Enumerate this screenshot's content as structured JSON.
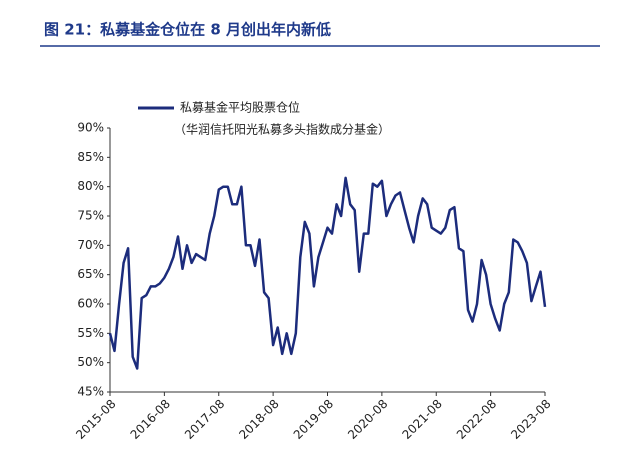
{
  "chart_data": {
    "type": "line",
    "title": "图 21：私募基金仓位在 8 月创出年内新低",
    "legend_note": "（华润信托阳光私募多头指数成分基金）",
    "categories": [
      "2015-08",
      null,
      null,
      null,
      null,
      null,
      null,
      null,
      null,
      null,
      null,
      null,
      "2016-08",
      null,
      null,
      null,
      null,
      null,
      null,
      null,
      null,
      null,
      null,
      null,
      "2017-08",
      null,
      null,
      null,
      null,
      null,
      null,
      null,
      null,
      null,
      null,
      null,
      "2018-08",
      null,
      null,
      null,
      null,
      null,
      null,
      null,
      null,
      null,
      null,
      null,
      "2019-08",
      null,
      null,
      null,
      null,
      null,
      null,
      null,
      null,
      null,
      null,
      null,
      "2020-08",
      null,
      null,
      null,
      null,
      null,
      null,
      null,
      null,
      null,
      null,
      null,
      "2021-08",
      null,
      null,
      null,
      null,
      null,
      null,
      null,
      null,
      null,
      null,
      null,
      "2022-08",
      null,
      null,
      null,
      null,
      null,
      null,
      null,
      null,
      null,
      null,
      null,
      "2023-08"
    ],
    "series": [
      {
        "name": "私募基金平均股票仓位",
        "color": "#1c2c7c",
        "values": [
          55,
          52,
          60,
          67,
          69.5,
          51,
          49,
          61,
          61.5,
          63,
          63,
          63.5,
          64.5,
          66,
          68,
          71.5,
          66,
          70,
          67,
          68.5,
          68,
          67.5,
          72,
          75,
          79.5,
          80,
          80,
          77,
          77,
          80,
          70,
          70,
          66.5,
          71,
          62,
          61,
          53,
          56,
          51.5,
          55,
          51.5,
          55,
          68,
          74,
          72,
          63,
          68,
          70.5,
          73,
          72,
          77,
          75,
          81.5,
          77,
          76,
          65.5,
          72,
          72,
          80.5,
          80,
          81,
          75,
          77,
          78.5,
          79,
          76,
          73,
          70.5,
          75,
          78,
          77,
          73,
          72.5,
          72,
          73,
          76,
          76.5,
          69.5,
          69,
          59,
          57,
          60,
          67.5,
          65,
          60,
          57.5,
          55.5,
          60,
          62,
          71,
          70.5,
          69,
          67,
          60.5,
          63,
          65.5,
          59.5
        ]
      }
    ],
    "ylim": [
      45,
      90
    ],
    "yticks": [
      {
        "value": 45,
        "label": "45%"
      },
      {
        "value": 50,
        "label": "50%"
      },
      {
        "value": 55,
        "label": "55%"
      },
      {
        "value": 60,
        "label": "60%"
      },
      {
        "value": 65,
        "label": "65%"
      },
      {
        "value": 70,
        "label": "70%"
      },
      {
        "value": 75,
        "label": "75%"
      },
      {
        "value": 80,
        "label": "80%"
      },
      {
        "value": 85,
        "label": "85%"
      },
      {
        "value": 90,
        "label": "90%"
      }
    ],
    "grid": false
  }
}
